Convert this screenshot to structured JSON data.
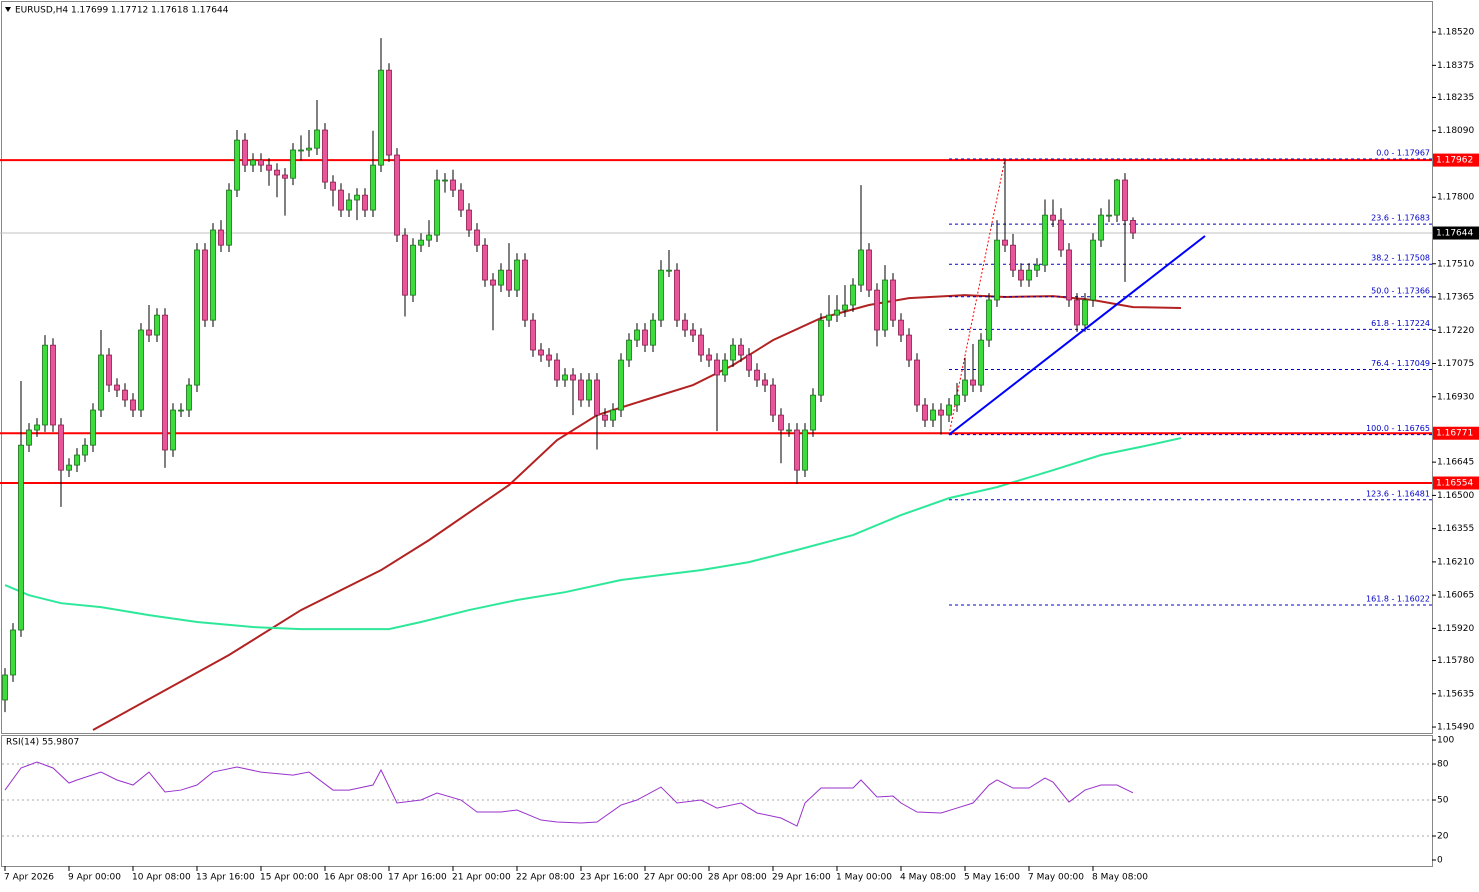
{
  "chart_data": [
    {
      "type": "candlestick",
      "title": "EURUSD,H4  1.17699 1.17712 1.17618 1.17644",
      "categories": [
        "7 Apr 2026",
        null,
        null,
        null,
        null,
        null,
        null,
        null,
        "9 Apr 00:00",
        null,
        null,
        null,
        null,
        null,
        null,
        null,
        "10 Apr 08:00",
        null,
        null,
        null,
        null,
        null,
        null,
        null,
        "13 Apr 16:00",
        null,
        null,
        null,
        null,
        null,
        null,
        null,
        "15 Apr 00:00",
        null,
        null,
        null,
        null,
        null,
        null,
        null,
        "16 Apr 08:00",
        null,
        null,
        null,
        null,
        null,
        null,
        null,
        "17 Apr 16:00",
        null,
        null,
        null,
        null,
        null,
        null,
        null,
        "21 Apr 00:00",
        null,
        null,
        null,
        null,
        null,
        null,
        null,
        "22 Apr 08:00",
        null,
        null,
        null,
        null,
        null,
        null,
        null,
        "23 Apr 16:00",
        null,
        null,
        null,
        null,
        null,
        null,
        null,
        "27 Apr 00:00",
        null,
        null,
        null,
        null,
        null,
        null,
        null,
        "28 Apr 08:00",
        null,
        null,
        null,
        null,
        null,
        null,
        null,
        "29 Apr 16:00",
        null,
        null,
        null,
        null,
        null,
        null,
        null,
        "1 May 00:00",
        null,
        null,
        null,
        null,
        null,
        null,
        null,
        "4 May 08:00",
        null,
        null,
        null,
        null,
        null,
        null,
        null,
        "5 May 16:00",
        null,
        null,
        null,
        null,
        null,
        null,
        null,
        "7 May 00:00",
        null,
        null,
        null,
        null,
        null,
        null,
        null,
        "8 May 08:00",
        null,
        null,
        null,
        null,
        null
      ],
      "open": [
        1.15608,
        1.15717,
        1.15913,
        1.16719,
        1.16785,
        1.16807,
        1.17155,
        1.16807,
        1.1661,
        1.16632,
        1.16676,
        1.16719,
        1.16872,
        1.17112,
        1.16981,
        1.16959,
        1.16916,
        1.16872,
        1.17221,
        1.17199,
        1.17286,
        1.16698,
        1.16872,
        1.16872,
        1.16981,
        1.1757,
        1.17264,
        1.17657,
        1.17591,
        1.17831,
        1.18049,
        1.1794,
        1.17962,
        1.1794,
        1.17918,
        1.17897,
        1.17883,
        1.18006,
        1.18006,
        1.18014,
        1.18093,
        1.17866,
        1.17831,
        1.17744,
        1.17788,
        1.17809,
        1.17744,
        1.1794,
        1.18354,
        1.17984,
        1.17635,
        1.17373,
        1.17591,
        1.17613,
        1.17635,
        1.17875,
        1.17875,
        1.17831,
        1.17744,
        1.17657,
        1.17591,
        1.17439,
        1.17417,
        1.17482,
        1.17395,
        1.17526,
        1.17264,
        1.17134,
        1.17112,
        1.1709,
        1.17003,
        1.17025,
        1.17003,
        1.16916,
        1.17003,
        1.1685,
        1.16828,
        1.16872,
        1.1709,
        1.17177,
        1.17221,
        1.17155,
        1.17264,
        1.17482,
        1.17482,
        1.17264,
        1.17221,
        1.17199,
        1.17112,
        1.1709,
        1.17025,
        1.1709,
        1.17155,
        1.17112,
        1.17046,
        1.17003,
        1.16981,
        1.1685,
        1.16785,
        1.16785,
        1.1661,
        1.16785,
        1.16937,
        1.17264,
        1.17286,
        1.17308,
        1.1733,
        1.17417,
        1.1757,
        1.17395,
        1.17221,
        1.17439,
        1.17264,
        1.17199,
        1.1709,
        1.16894,
        1.16828,
        1.16872,
        1.1685,
        1.16894,
        1.16937,
        1.17003,
        1.16981,
        1.17177,
        1.17352,
        1.17613,
        1.17591,
        1.17482,
        1.17439,
        1.17482,
        1.17504,
        1.17722,
        1.177,
        1.1757,
        1.17352,
        1.17243,
        1.17352,
        1.17613,
        1.17722,
        1.17722,
        1.17875,
        1.17699
      ],
      "high": [
        1.15747,
        1.15943,
        1.16999,
        1.16815,
        1.16837,
        1.17199,
        1.17185,
        1.16837,
        1.16662,
        1.16706,
        1.16749,
        1.16902,
        1.17221,
        1.17142,
        1.17011,
        1.16989,
        1.16946,
        1.17251,
        1.1733,
        1.17316,
        1.17316,
        1.16902,
        1.16902,
        1.17011,
        1.176,
        1.176,
        1.17687,
        1.177,
        1.17861,
        1.18093,
        1.18079,
        1.17992,
        1.17992,
        1.1797,
        1.17948,
        1.17927,
        1.18036,
        1.1807,
        1.18093,
        1.18224,
        1.18123,
        1.17896,
        1.17861,
        1.17818,
        1.17839,
        1.17839,
        1.1809,
        1.18494,
        1.18384,
        1.18014,
        1.17665,
        1.17621,
        1.17643,
        1.177,
        1.1792,
        1.17905,
        1.1792,
        1.17861,
        1.17774,
        1.17687,
        1.17621,
        1.17469,
        1.17512,
        1.176,
        1.17556,
        1.17556,
        1.17294,
        1.17164,
        1.17142,
        1.1712,
        1.17055,
        1.17055,
        1.17033,
        1.17033,
        1.17033,
        1.1688,
        1.16902,
        1.1712,
        1.17207,
        1.17251,
        1.17251,
        1.17294,
        1.17526,
        1.1757,
        1.17512,
        1.17294,
        1.17251,
        1.17229,
        1.17142,
        1.1712,
        1.1712,
        1.17185,
        1.17185,
        1.17142,
        1.17076,
        1.17033,
        1.17011,
        1.1688,
        1.16815,
        1.16815,
        1.16815,
        1.16967,
        1.17294,
        1.17373,
        1.17373,
        1.17417,
        1.17447,
        1.17853,
        1.176,
        1.17425,
        1.17504,
        1.17469,
        1.17294,
        1.17229,
        1.1712,
        1.16924,
        1.16902,
        1.16902,
        1.16924,
        1.1699,
        1.171,
        1.1716,
        1.17207,
        1.17382,
        1.177,
        1.17962,
        1.1764,
        1.17512,
        1.17512,
        1.17534,
        1.1779,
        1.1779,
        1.17752,
        1.176,
        1.17382,
        1.17382,
        1.17643,
        1.17752,
        1.1779,
        1.1788,
        1.17905,
        1.17712
      ],
      "low": [
        1.15555,
        1.15687,
        1.15883,
        1.16689,
        1.16755,
        1.16777,
        1.16777,
        1.1645,
        1.1658,
        1.16602,
        1.16646,
        1.16689,
        1.16842,
        1.16951,
        1.16929,
        1.16886,
        1.16842,
        1.16842,
        1.17169,
        1.17169,
        1.1662,
        1.16668,
        1.16842,
        1.16842,
        1.16951,
        1.17234,
        1.17234,
        1.17561,
        1.17561,
        1.17801,
        1.1791,
        1.1791,
        1.1791,
        1.1785,
        1.178,
        1.1772,
        1.17853,
        1.1796,
        1.17976,
        1.17984,
        1.17836,
        1.1776,
        1.17714,
        1.17714,
        1.177,
        1.17714,
        1.17714,
        1.1791,
        1.17954,
        1.17605,
        1.1728,
        1.17343,
        1.17561,
        1.17583,
        1.17605,
        1.1782,
        1.17801,
        1.17714,
        1.17627,
        1.17561,
        1.17409,
        1.1722,
        1.17387,
        1.17365,
        1.17365,
        1.17234,
        1.17104,
        1.17082,
        1.1706,
        1.16973,
        1.16973,
        1.1685,
        1.16886,
        1.16886,
        1.167,
        1.16798,
        1.16798,
        1.16842,
        1.1706,
        1.17147,
        1.17125,
        1.17125,
        1.17234,
        1.17452,
        1.17234,
        1.17191,
        1.17169,
        1.17082,
        1.1706,
        1.1678,
        1.16995,
        1.1706,
        1.17082,
        1.17016,
        1.16973,
        1.16951,
        1.1682,
        1.1664,
        1.16755,
        1.1655,
        1.1658,
        1.16755,
        1.16907,
        1.17234,
        1.17256,
        1.17278,
        1.173,
        1.17387,
        1.17365,
        1.1715,
        1.17191,
        1.17234,
        1.17169,
        1.1706,
        1.16864,
        1.16798,
        1.16798,
        1.16765,
        1.1682,
        1.16864,
        1.16907,
        1.16951,
        1.16951,
        1.17147,
        1.17322,
        1.17561,
        1.17452,
        1.17409,
        1.17409,
        1.17452,
        1.17474,
        1.1767,
        1.1754,
        1.17322,
        1.17213,
        1.17213,
        1.17322,
        1.17583,
        1.17692,
        1.17692,
        1.17431,
        1.17618
      ],
      "close": [
        1.15717,
        1.15913,
        1.16719,
        1.16785,
        1.16807,
        1.17155,
        1.16807,
        1.1661,
        1.16632,
        1.16676,
        1.16719,
        1.16872,
        1.17112,
        1.16981,
        1.16959,
        1.16916,
        1.16872,
        1.17221,
        1.17199,
        1.17286,
        1.16698,
        1.16872,
        1.16872,
        1.16981,
        1.1757,
        1.17264,
        1.17657,
        1.17591,
        1.17831,
        1.18049,
        1.1794,
        1.17962,
        1.1794,
        1.17918,
        1.17897,
        1.17883,
        1.18006,
        1.18006,
        1.18014,
        1.18093,
        1.17866,
        1.17831,
        1.17744,
        1.17788,
        1.17809,
        1.17744,
        1.1794,
        1.18354,
        1.17984,
        1.17635,
        1.17373,
        1.17591,
        1.17613,
        1.17635,
        1.17875,
        1.17875,
        1.17831,
        1.17744,
        1.17657,
        1.17591,
        1.17439,
        1.17417,
        1.17482,
        1.17395,
        1.17526,
        1.17264,
        1.17134,
        1.17112,
        1.1709,
        1.17003,
        1.17025,
        1.17003,
        1.16916,
        1.17003,
        1.1685,
        1.16828,
        1.16872,
        1.1709,
        1.17177,
        1.17221,
        1.17155,
        1.17264,
        1.17482,
        1.17482,
        1.17264,
        1.17221,
        1.17199,
        1.17112,
        1.1709,
        1.17025,
        1.1709,
        1.17155,
        1.17112,
        1.17046,
        1.17003,
        1.16981,
        1.1685,
        1.16785,
        1.16785,
        1.1661,
        1.16785,
        1.16937,
        1.17264,
        1.17286,
        1.17308,
        1.1733,
        1.17417,
        1.1757,
        1.17395,
        1.17221,
        1.17439,
        1.17264,
        1.17199,
        1.1709,
        1.16894,
        1.16828,
        1.16872,
        1.1685,
        1.16894,
        1.16937,
        1.17003,
        1.16981,
        1.17177,
        1.17352,
        1.17613,
        1.17591,
        1.17482,
        1.17439,
        1.17482,
        1.17504,
        1.17722,
        1.177,
        1.1757,
        1.17352,
        1.17243,
        1.17352,
        1.17613,
        1.17722,
        1.17722,
        1.17875,
        1.17699,
        1.17644
      ],
      "bull_color": "#3ddc3d",
      "bear_color": "#e8559a",
      "ylim": [
        1.15464,
        1.1866
      ],
      "yticks": [
        {
          "value": 1.1852,
          "label": "1.18520"
        },
        {
          "value": 1.18375,
          "label": "1.18375"
        },
        {
          "value": 1.18235,
          "label": "1.18235"
        },
        {
          "value": 1.1809,
          "label": "1.18090"
        },
        {
          "value": 1.178,
          "label": "1.17800"
        },
        {
          "value": 1.1751,
          "label": "1.17510"
        },
        {
          "value": 1.17365,
          "label": "1.17365"
        },
        {
          "value": 1.1722,
          "label": "1.17220"
        },
        {
          "value": 1.17075,
          "label": "1.17075"
        },
        {
          "value": 1.1693,
          "label": "1.16930"
        },
        {
          "value": 1.16645,
          "label": "1.16645"
        },
        {
          "value": 1.165,
          "label": "1.16500"
        },
        {
          "value": 1.16355,
          "label": "1.16355"
        },
        {
          "value": 1.1621,
          "label": "1.16210"
        },
        {
          "value": 1.16065,
          "label": "1.16065"
        },
        {
          "value": 1.1592,
          "label": "1.15920"
        },
        {
          "value": 1.1578,
          "label": "1.15780"
        },
        {
          "value": 1.15635,
          "label": "1.15635"
        },
        {
          "value": 1.1549,
          "label": "1.15490"
        }
      ],
      "lines": [
        {
          "color": "#b22222",
          "x": [
            11,
            28,
            37,
            47,
            53,
            63,
            69,
            74,
            80,
            86,
            91,
            96,
            102,
            108,
            113,
            120,
            125,
            131,
            136,
            141,
            147
          ],
          "values": [
            1.15477,
            1.15804,
            1.16,
            1.16174,
            1.16305,
            1.16545,
            1.16741,
            1.1685,
            1.16916,
            1.16981,
            1.17068,
            1.17177,
            1.17273,
            1.1733,
            1.1736,
            1.17373,
            1.17365,
            1.17369,
            1.17352,
            1.17321,
            1.17317
          ]
        },
        {
          "color": "#2ee89a",
          "x": [
            0,
            3,
            7,
            12,
            18,
            24,
            31,
            37,
            48,
            52,
            58,
            64,
            70,
            77,
            82,
            87,
            93,
            99,
            106,
            112,
            118,
            124,
            131,
            137,
            143,
            147
          ],
          "values": [
            1.16109,
            1.16065,
            1.1603,
            1.16013,
            1.15978,
            1.15948,
            1.15926,
            1.15917,
            1.15917,
            1.15948,
            1.16,
            1.16044,
            1.16078,
            1.16131,
            1.16153,
            1.16174,
            1.16209,
            1.16262,
            1.16327,
            1.16414,
            1.16488,
            1.16536,
            1.1661,
            1.16676,
            1.16719,
            1.1675
          ]
        }
      ],
      "hlines": [
        {
          "value": 1.17962,
          "color": "#ff0000"
        },
        {
          "value": 1.16771,
          "color": "#ff0000"
        },
        {
          "value": 1.16554,
          "color": "#ff0000"
        }
      ],
      "bid": 1.17644,
      "fib": {
        "color": "#0000cc",
        "anchor": {
          "x": [
            118,
            125
          ],
          "y": [
            1.16765,
            1.17967
          ]
        },
        "levels": [
          {
            "label": "0.0 - 1.17967",
            "value": 1.17967
          },
          {
            "label": "23.6 - 1.17683",
            "value": 1.17683
          },
          {
            "label": "38.2 - 1.17508",
            "value": 1.17508
          },
          {
            "label": "50.0 - 1.17366",
            "value": 1.17366
          },
          {
            "label": "61.8 - 1.17224",
            "value": 1.17224
          },
          {
            "label": "76.4 - 1.17049",
            "value": 1.17049
          },
          {
            "label": "100.0 - 1.16765",
            "value": 1.16765
          },
          {
            "label": "123.6 - 1.16481",
            "value": 1.16481
          },
          {
            "label": "161.8 - 1.16022",
            "value": 1.16022
          }
        ]
      },
      "trendline": {
        "color": "#0000ff",
        "x": [
          118,
          150
        ],
        "y": [
          1.16765,
          1.17631
        ]
      }
    },
    {
      "type": "line",
      "title": "RSI(14) 55.9807",
      "color": "#9932cc",
      "x": [
        0,
        2,
        4,
        6,
        8,
        9,
        12,
        14,
        16,
        18,
        20,
        22,
        24,
        26,
        29,
        32,
        36,
        38,
        41,
        43,
        46,
        47,
        49,
        52,
        54,
        57,
        59,
        62,
        64,
        67,
        69,
        72,
        74,
        77,
        79,
        82,
        84,
        87,
        89,
        92,
        94,
        97,
        99,
        100,
        102,
        106,
        107,
        109,
        111,
        112,
        114,
        117,
        119,
        121,
        123,
        124,
        126,
        128,
        130,
        131,
        133,
        135,
        137,
        139,
        141
      ],
      "values": [
        58.3,
        76.7,
        81.7,
        76.7,
        64.2,
        66.7,
        73.3,
        66.7,
        62.5,
        73.3,
        56.7,
        58.3,
        62.5,
        73.3,
        77.5,
        73.3,
        70.8,
        73.3,
        58.3,
        58.3,
        62.5,
        75,
        47.5,
        50,
        55.8,
        50,
        40,
        40,
        41.7,
        33.3,
        31.7,
        30.8,
        31.7,
        45.8,
        50,
        60.8,
        47.5,
        50,
        43.3,
        47.5,
        39.2,
        35,
        28.3,
        47.5,
        60,
        60,
        66.7,
        52.5,
        53.3,
        47.5,
        40,
        39.2,
        43.3,
        47.5,
        62.5,
        66.7,
        60,
        60,
        68.3,
        65,
        48.3,
        58.3,
        62.5,
        62.5,
        55.98
      ],
      "ylim": [
        -5,
        104.2
      ],
      "yticks": [
        0,
        20,
        50,
        80,
        100
      ],
      "levels": [
        20,
        50,
        80
      ]
    }
  ]
}
